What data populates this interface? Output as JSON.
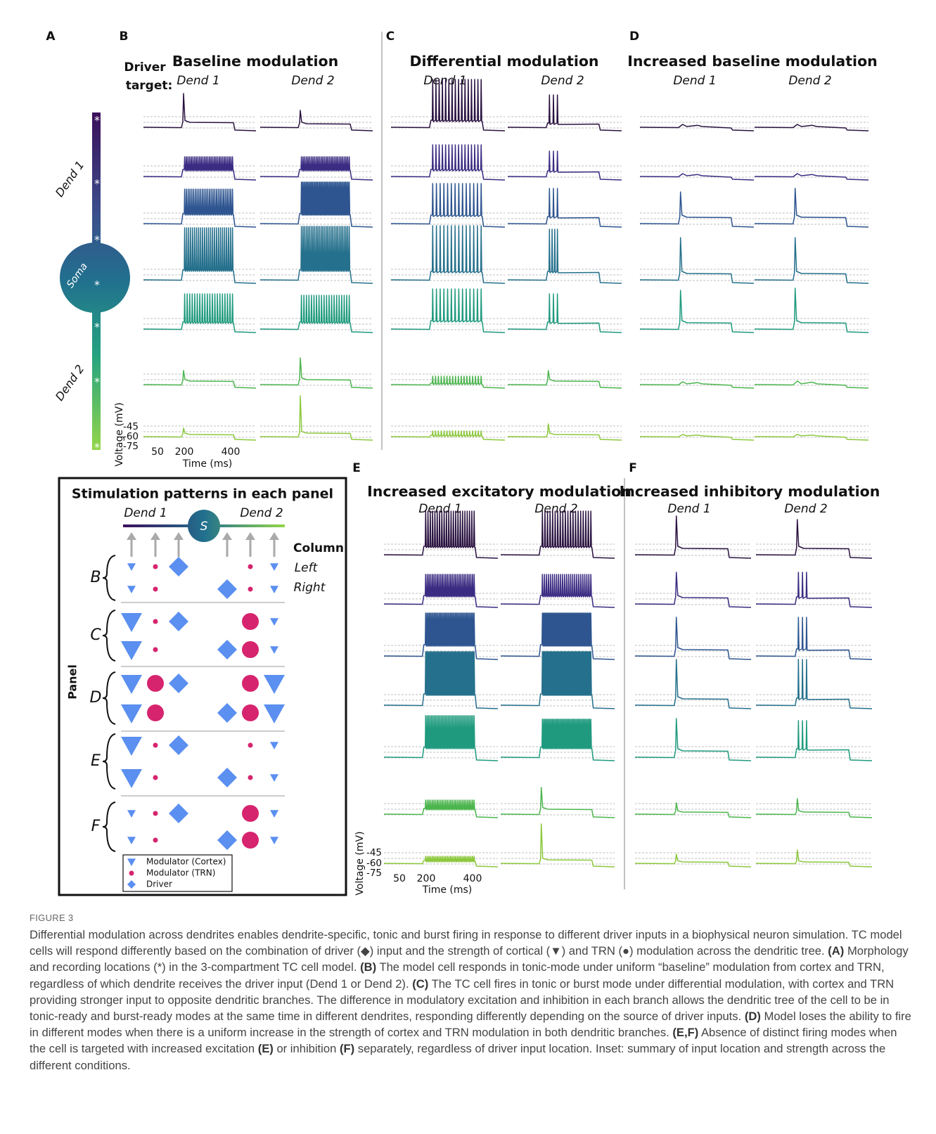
{
  "panel_A": {
    "label": "A",
    "dend1": "Dend 1",
    "soma": "Soma",
    "dend2": "Dend 2"
  },
  "driver_target": [
    "Driver",
    "target:"
  ],
  "panels": [
    {
      "label": "B",
      "title": "Baseline modulation",
      "dend1": "Dend 1",
      "dend2": "Dend 2"
    },
    {
      "label": "C",
      "title": "Differential modulation",
      "dend1": "Dend 1",
      "dend2": "Dend 2"
    },
    {
      "label": "D",
      "title": "Increased baseline modulation",
      "dend1": "Dend 1",
      "dend2": "Dend 2"
    },
    {
      "label": "E",
      "title": "Increased excitatory modulation",
      "dend1": "Dend 1",
      "dend2": "Dend 2"
    },
    {
      "label": "F",
      "title": "Increased inhibitory modulation",
      "dend1": "Dend 1",
      "dend2": "Dend 2"
    }
  ],
  "axes": [
    {
      "ylabel": "Voltage (mV)",
      "yticks": [
        "-45",
        "-60",
        "-75"
      ],
      "xticks": [
        "50",
        "200",
        "400"
      ],
      "xlabel": "Time (ms)"
    },
    {
      "ylabel": "Voltage (mV)",
      "yticks": [
        "-45",
        "-60",
        "-75"
      ],
      "xticks": [
        "50",
        "200",
        "400"
      ],
      "xlabel": "Time (ms)"
    }
  ],
  "inset": {
    "title": "Stimulation patterns in each panel",
    "dend1": "Dend 1",
    "dend2": "Dend 2",
    "soma": "S",
    "column": "Column",
    "left": "Left",
    "right": "Right",
    "panel": "Panel",
    "rows": [
      "B",
      "C",
      "D",
      "E",
      "F"
    ],
    "legend": [
      "Modulator (Cortex)",
      "Modulator (TRN)",
      "Driver"
    ]
  },
  "caption": {
    "label": "FIGURE 3",
    "parts": [
      {
        "text": "Differential modulation across dendrites enables dendrite-specific, tonic and burst firing in response to different driver inputs in a biophysical neuron simulation. TC model cells will respond differently based on the combination of driver (◆) input and the strength of cortical (▼) and TRN (●) modulation across the dendritic tree.",
        "bold": false
      },
      {
        "text": "(A)",
        "bold": true
      },
      {
        "text": "Morphology and recording locations (*) in the 3-compartment TC cell model.",
        "bold": false
      },
      {
        "text": "(B)",
        "bold": true
      },
      {
        "text": "The model cell responds in tonic-mode under uniform “baseline” modulation from cortex and TRN, regardless of which dendrite receives the driver input (Dend 1 or Dend 2).",
        "bold": false
      },
      {
        "text": "(C)",
        "bold": true
      },
      {
        "text": "The TC cell fires in tonic or burst mode under differential modulation, with cortex and TRN providing stronger input to opposite dendritic branches. The difference in modulatory excitation and inhibition in each branch allows the dendritic tree of the cell to be in tonic-ready and burst-ready modes at the same time in different dendrites, responding differently depending on the source of driver inputs.",
        "bold": false
      },
      {
        "text": "(D)",
        "bold": true
      },
      {
        "text": "Model loses the ability to fire in different modes when there is a uniform increase in the strength of cortex and TRN modulation in both dendritic branches.",
        "bold": false
      },
      {
        "text": "(E,F)",
        "bold": true
      },
      {
        "text": "Absence of distinct firing modes when the cell is targeted with increased excitation",
        "bold": false
      },
      {
        "text": "(E)",
        "bold": true
      },
      {
        "text": "or inhibition",
        "bold": false
      },
      {
        "text": "(F)",
        "bold": true
      },
      {
        "text": "separately, regardless of driver input location. Inset: summary of input location and strength across the different conditions.",
        "bold": false
      }
    ]
  }
}
